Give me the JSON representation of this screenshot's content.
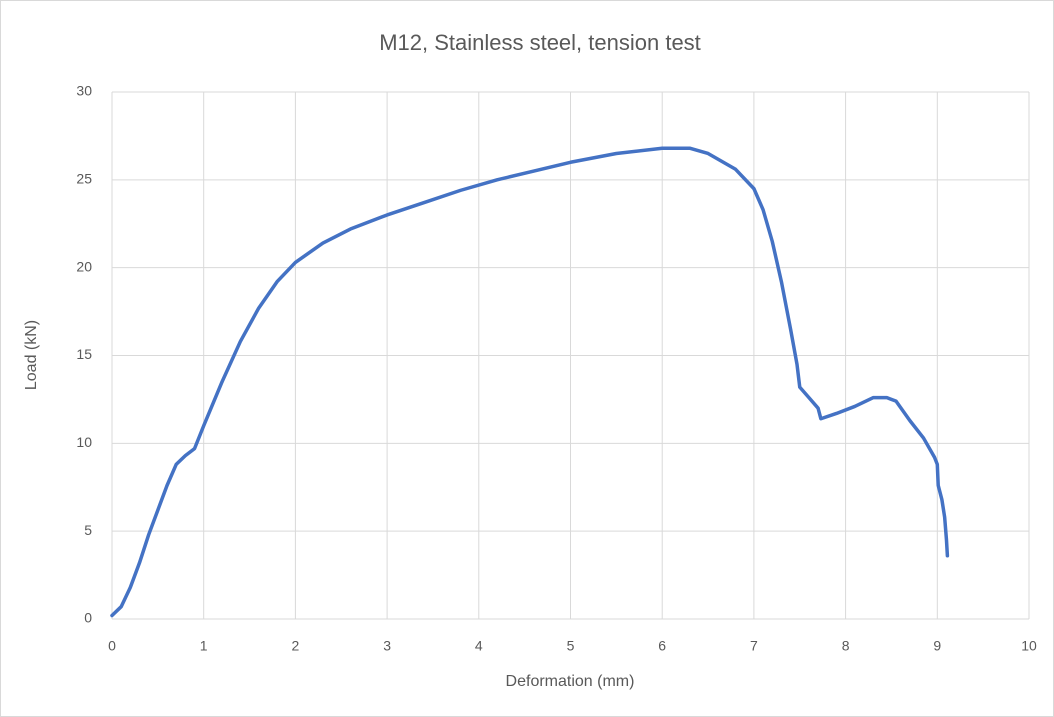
{
  "chart_data": {
    "type": "line",
    "title": "M12, Stainless steel, tension test",
    "x_label": "Deformation (mm)",
    "y_label": "Load (kN)",
    "xlim": [
      0,
      10
    ],
    "xticks": [
      0,
      1,
      2,
      3,
      4,
      5,
      6,
      7,
      8,
      9,
      10
    ],
    "ylim": [
      0,
      30
    ],
    "yticks": [
      0,
      5,
      10,
      15,
      20,
      25,
      30
    ],
    "grid": true,
    "series": [
      {
        "name": "Load",
        "color": "#4472c4",
        "x": [
          0,
          0.1,
          0.2,
          0.3,
          0.4,
          0.5,
          0.6,
          0.7,
          0.8,
          0.9,
          1.0,
          1.2,
          1.4,
          1.6,
          1.8,
          2.0,
          2.3,
          2.6,
          3.0,
          3.4,
          3.8,
          4.2,
          4.6,
          5.0,
          5.5,
          6.0,
          6.3,
          6.5,
          6.8,
          7.0,
          7.1,
          7.2,
          7.3,
          7.4,
          7.47,
          7.5,
          7.6,
          7.7,
          7.73,
          7.9,
          8.1,
          8.3,
          8.45,
          8.55,
          8.7,
          8.85,
          8.97,
          9.0,
          9.01,
          9.05,
          9.08,
          9.1,
          9.11
        ],
        "values": [
          0.2,
          0.7,
          1.8,
          3.2,
          4.8,
          6.2,
          7.6,
          8.8,
          9.3,
          9.7,
          11.0,
          13.5,
          15.8,
          17.7,
          19.2,
          20.3,
          21.4,
          22.2,
          23.0,
          23.7,
          24.4,
          25.0,
          25.5,
          26.0,
          26.5,
          26.8,
          26.8,
          26.5,
          25.6,
          24.5,
          23.3,
          21.5,
          19.2,
          16.5,
          14.5,
          13.2,
          12.6,
          12.0,
          11.4,
          11.7,
          12.1,
          12.6,
          12.6,
          12.4,
          11.3,
          10.3,
          9.2,
          8.8,
          7.6,
          6.8,
          5.8,
          4.5,
          3.6
        ]
      }
    ]
  }
}
